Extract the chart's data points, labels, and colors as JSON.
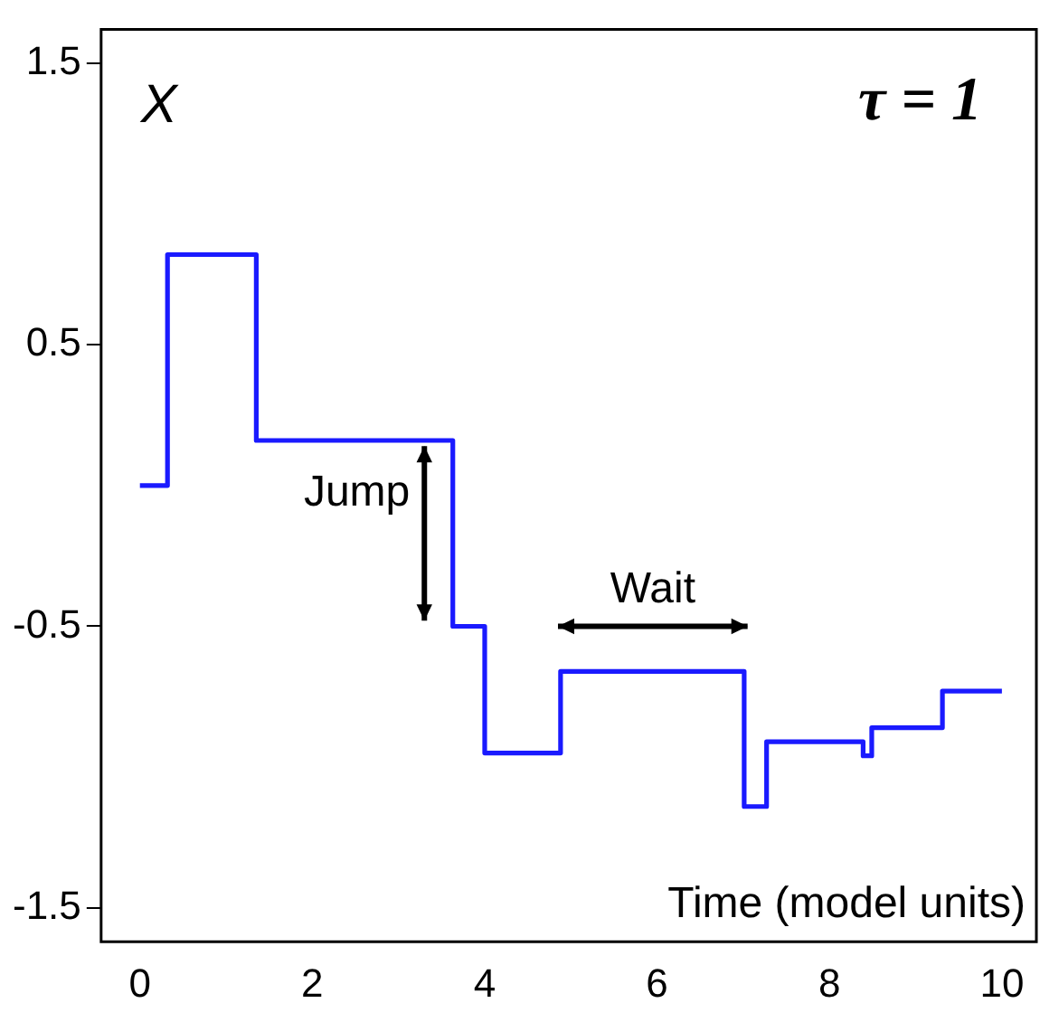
{
  "chart_data": {
    "type": "step",
    "title": "τ = 1",
    "xlabel": "Time (model units)",
    "ylabel": "X",
    "x": [
      0,
      0.32,
      1.35,
      3.63,
      4.0,
      4.88,
      7.01,
      7.27,
      8.39,
      8.49,
      9.31,
      10
    ],
    "series": [
      {
        "color": "#1a1aff",
        "values": [
          0.0,
          0.82,
          0.16,
          -0.5,
          -0.95,
          -0.66,
          -1.14,
          -0.91,
          -0.96,
          -0.86,
          -0.73,
          -0.73
        ]
      }
    ],
    "xlim": [
      -0.45,
      10.4
    ],
    "xticks": [
      0,
      2,
      4,
      6,
      8,
      10
    ],
    "ylim": [
      -1.62,
      1.62
    ],
    "yticks": [
      -1.5,
      -0.5,
      0.5,
      1.5
    ],
    "grid": false,
    "legend": false,
    "annotations": [
      "Jump",
      "Wait"
    ]
  }
}
